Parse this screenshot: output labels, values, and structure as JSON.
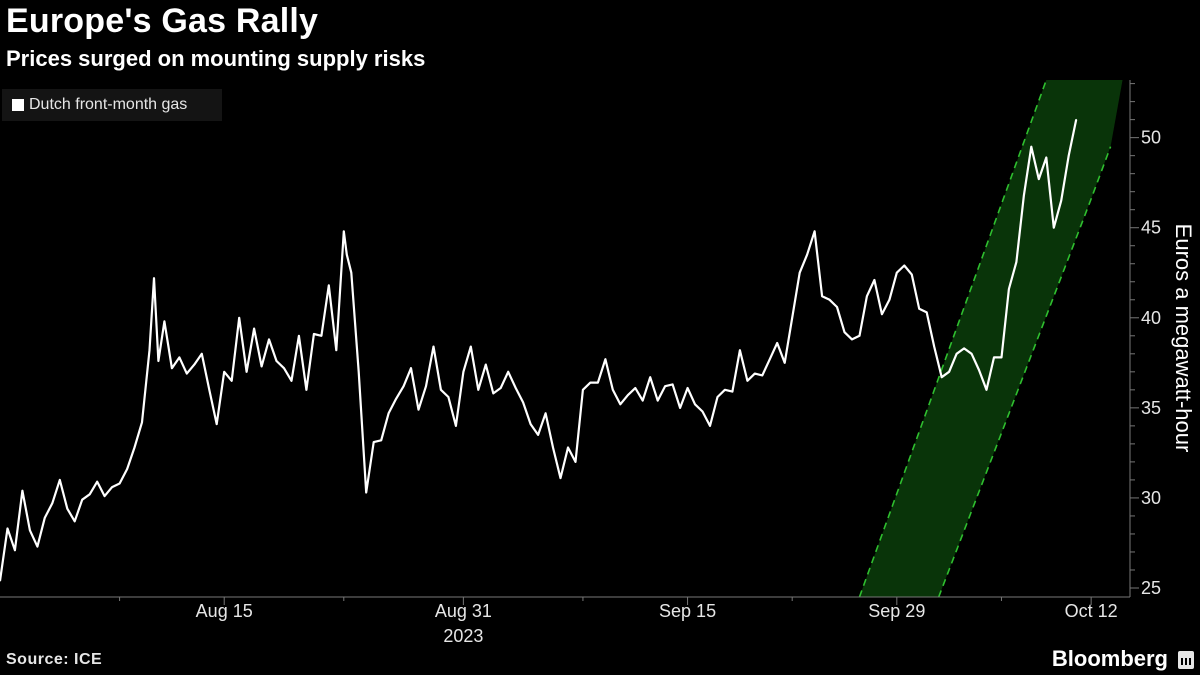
{
  "header": {
    "title": "Europe's Gas Rally",
    "subtitle": "Prices surged on mounting supply risks"
  },
  "footer": {
    "source": "Source: ICE",
    "brand": "Bloomberg"
  },
  "colors": {
    "background": "#000000",
    "line": "#ffffff",
    "band_fill": "#0a3d0a",
    "band_edge": "#2fbf2f",
    "axis": "#777777"
  },
  "chart_data": {
    "type": "line",
    "title": "Europe's Gas Rally",
    "subtitle": "Prices surged on mounting supply risks",
    "legend": [
      "Dutch front-month gas"
    ],
    "legend_position": "top-left",
    "ylabel": "Euros a megawatt-hour",
    "xlabel": "2023",
    "ylim": [
      24.5,
      53.2
    ],
    "yticks": [
      25,
      30,
      35,
      40,
      45,
      50
    ],
    "xlim": [
      0,
      72
    ],
    "xticks": [
      {
        "x": 15,
        "label": "Aug 15"
      },
      {
        "x": 31,
        "label": "Aug 31"
      },
      {
        "x": 46,
        "label": "Sep 15"
      },
      {
        "x": 60,
        "label": "Sep 29"
      },
      {
        "x": 73,
        "label": "Oct 12"
      }
    ],
    "minor_xticks": [
      8,
      23,
      39,
      53,
      67
    ],
    "year_label": "2023",
    "trend_band": {
      "lower": [
        [
          62.8,
          24.5
        ],
        [
          73.0,
          46.6
        ],
        [
          74.3,
          49.5
        ]
      ],
      "upper": [
        [
          57.5,
          24.5
        ],
        [
          70.0,
          53.2
        ]
      ],
      "style": "dashed edges, shaded green"
    },
    "series": [
      {
        "name": "Dutch front-month gas",
        "x": [
          0,
          0.5,
          1,
          1.5,
          2,
          2.5,
          3,
          3.5,
          4,
          4.5,
          5,
          5.5,
          6,
          6.5,
          7,
          7.5,
          8,
          8.5,
          9,
          9.5,
          10,
          10.3,
          10.6,
          11,
          11.5,
          12,
          12.5,
          13,
          13.5,
          14,
          14.5,
          15,
          15.5,
          16,
          16.5,
          17,
          17.5,
          18,
          18.5,
          19,
          19.5,
          20,
          20.5,
          21,
          21.5,
          22,
          22.5,
          23,
          23.2,
          23.5,
          24,
          24.5,
          25,
          25.5,
          26,
          26.5,
          27,
          27.5,
          28,
          28.5,
          29,
          29.5,
          30,
          30.5,
          31,
          31.5,
          32,
          32.5,
          33,
          33.5,
          34,
          34.5,
          35,
          35.5,
          36,
          36.5,
          37,
          37.5,
          38,
          38.5,
          39,
          39.5,
          40,
          40.5,
          41,
          41.5,
          42,
          42.5,
          43,
          43.5,
          44,
          44.5,
          45,
          45.5,
          46,
          46.5,
          47,
          47.5,
          48,
          48.5,
          49,
          49.5,
          50,
          50.5,
          51,
          51.5,
          52,
          52.5,
          53,
          53.5,
          54,
          54.5,
          55,
          55.5,
          56,
          56.5,
          57,
          57.5,
          58,
          58.5,
          59,
          59.5,
          60,
          60.5,
          61,
          61.5,
          62,
          62.5,
          63,
          63.5,
          64,
          64.5,
          65,
          65.5,
          66,
          66.5,
          67,
          67.5,
          68,
          68.5,
          69,
          69.5,
          70,
          70.5,
          71,
          71.5,
          72
        ],
        "values": [
          25.4,
          28.3,
          27.1,
          30.4,
          28.2,
          27.3,
          28.9,
          29.7,
          31.0,
          29.4,
          28.7,
          29.9,
          30.2,
          30.9,
          30.1,
          30.6,
          30.8,
          31.6,
          32.8,
          34.2,
          38.2,
          42.2,
          37.6,
          39.8,
          37.2,
          37.8,
          36.9,
          37.4,
          38.0,
          36.0,
          34.1,
          37.0,
          36.5,
          40.0,
          37.0,
          39.4,
          37.3,
          38.8,
          37.6,
          37.2,
          36.5,
          39.0,
          36.0,
          39.1,
          39.0,
          41.8,
          38.2,
          44.8,
          43.5,
          42.5,
          37.0,
          30.3,
          33.1,
          33.2,
          34.7,
          35.5,
          36.2,
          37.2,
          34.9,
          36.2,
          38.4,
          36.0,
          35.6,
          34.0,
          37.0,
          38.4,
          36.0,
          37.4,
          35.8,
          36.1,
          37.0,
          36.1,
          35.3,
          34.1,
          33.5,
          34.7,
          32.8,
          31.1,
          32.8,
          32.0,
          36.0,
          36.4,
          36.4,
          37.7,
          36.0,
          35.2,
          35.7,
          36.1,
          35.4,
          36.7,
          35.4,
          36.2,
          36.3,
          35.0,
          36.1,
          35.2,
          34.8,
          34.0,
          35.6,
          36.0,
          35.9,
          38.2,
          36.5,
          36.9,
          36.8,
          37.7,
          38.6,
          37.5,
          40.0,
          42.5,
          43.5,
          44.8,
          41.2,
          41.0,
          40.6,
          39.2,
          38.8,
          39.0,
          41.2,
          42.1,
          40.2,
          41.0,
          42.5,
          42.9,
          42.4,
          40.5,
          40.3,
          38.4,
          36.7,
          37.0,
          38.0,
          38.3,
          38.0,
          37.1,
          36.0,
          37.8,
          37.8,
          41.6,
          43.1,
          46.8,
          49.5,
          47.7,
          48.9,
          45.0,
          46.5,
          49.0,
          51.0
        ]
      }
    ]
  }
}
